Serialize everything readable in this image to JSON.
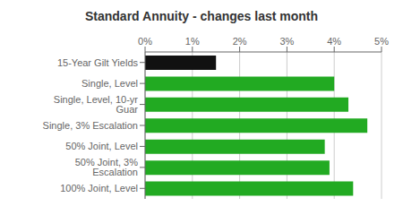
{
  "chart_data": {
    "type": "bar",
    "orientation": "horizontal",
    "title": "Standard Annuity - changes last month",
    "categories": [
      "15-Year Gilt Yields",
      "Single, Level",
      "Single, Level, 10-yr Guar",
      "Single, 3% Escalation",
      "50% Joint, Level",
      "50% Joint, 3% Escalation",
      "100% Joint, Level"
    ],
    "values": [
      1.5,
      4.0,
      4.3,
      4.7,
      3.8,
      3.9,
      4.4
    ],
    "colors": [
      "#111111",
      "#22aa22",
      "#22aa22",
      "#22aa22",
      "#22aa22",
      "#22aa22",
      "#22aa22"
    ],
    "xlim": [
      0,
      5
    ],
    "xticks": [
      {
        "value": 0,
        "label": "0%"
      },
      {
        "value": 1,
        "label": "1%"
      },
      {
        "value": 2,
        "label": "2%"
      },
      {
        "value": 3,
        "label": "3%"
      },
      {
        "value": 4,
        "label": "4%"
      },
      {
        "value": 5,
        "label": "5%"
      }
    ],
    "grid": true
  }
}
